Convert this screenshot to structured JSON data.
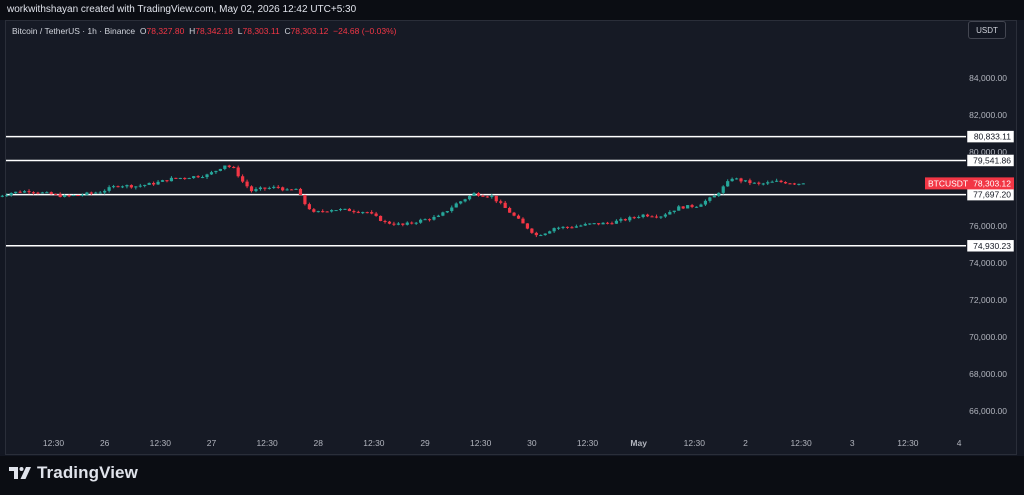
{
  "header": {
    "attribution": "workwithshayan created with TradingView.com, May 02, 2026 12:42 UTC+5:30"
  },
  "legend": {
    "symbol_line": "Bitcoin / TetherUS · 1h · Binance",
    "o_label": "O",
    "o_value": "78,327.80",
    "h_label": "H",
    "h_value": "78,342.18",
    "l_label": "L",
    "l_value": "78,303.11",
    "c_label": "C",
    "c_value": "78,303.12",
    "change": "−24.68 (−0.03%)"
  },
  "currency_button": "USDT",
  "footer": {
    "brand": "TradingView"
  },
  "colors": {
    "up": "#26a69a",
    "down": "#f23645",
    "background": "#161a25",
    "line": "#ffffff",
    "axis_text": "#b2b5be"
  },
  "chart_data": {
    "type": "candlestick",
    "symbol": "BTCUSDT",
    "timeframe": "1h",
    "ylim": [
      64500,
      86500
    ],
    "y_ticks": [
      "66,000.00",
      "68,000.00",
      "70,000.00",
      "72,000.00",
      "74,000.00",
      "76,000.00",
      "78,000.00",
      "80,000.00",
      "82,000.00",
      "84,000.00"
    ],
    "y_tick_values": [
      66000,
      68000,
      70000,
      72000,
      74000,
      76000,
      78000,
      80000,
      82000,
      84000
    ],
    "x_ticks": [
      "12:30",
      "26",
      "12:30",
      "27",
      "12:30",
      "28",
      "12:30",
      "29",
      "12:30",
      "30",
      "12:30",
      "May",
      "12:30",
      "2",
      "12:30",
      "3",
      "12:30",
      "4"
    ],
    "x_tick_hours": [
      12.5,
      24,
      36.5,
      48,
      60.5,
      72,
      84.5,
      96,
      108.5,
      120,
      132.5,
      144,
      156.5,
      168,
      180.5,
      192,
      204.5,
      216
    ],
    "x_origin_label": "25 00:00",
    "horizontal_lines": [
      {
        "value": 80833.11,
        "label": "80,833.11"
      },
      {
        "value": 79541.86,
        "label": "79,541.86"
      },
      {
        "value": 77697.2,
        "label": "77,697.20"
      },
      {
        "value": 74930.23,
        "label": "74,930.23"
      }
    ],
    "last_price": {
      "symbol": "BTCUSDT",
      "value": 78303.12,
      "label": "78,303.12"
    },
    "path_hours": [
      0,
      4,
      8,
      12,
      16,
      20,
      24,
      28,
      32,
      36,
      40,
      44,
      48,
      50,
      52,
      54,
      56,
      58,
      60,
      62,
      64,
      66,
      68,
      70,
      72,
      76,
      80,
      84,
      88,
      92,
      96,
      100,
      104,
      108,
      112,
      116,
      120,
      122,
      124,
      126,
      130,
      134,
      138,
      142,
      146,
      150,
      154,
      158,
      162,
      166,
      168,
      172,
      176,
      181
    ],
    "path_values": [
      77550,
      77800,
      77900,
      77750,
      77600,
      77700,
      77850,
      78200,
      78150,
      78300,
      78550,
      78650,
      78750,
      79000,
      79300,
      79100,
      78400,
      77900,
      78000,
      78050,
      78100,
      77900,
      78000,
      77200,
      76700,
      76900,
      76850,
      76750,
      76200,
      76050,
      76300,
      76500,
      77200,
      77750,
      77600,
      76750,
      75900,
      75500,
      75650,
      75900,
      75950,
      76100,
      76150,
      76350,
      76600,
      76550,
      77000,
      77100,
      77600,
      78600,
      78450,
      78250,
      78400,
      78303
    ]
  }
}
